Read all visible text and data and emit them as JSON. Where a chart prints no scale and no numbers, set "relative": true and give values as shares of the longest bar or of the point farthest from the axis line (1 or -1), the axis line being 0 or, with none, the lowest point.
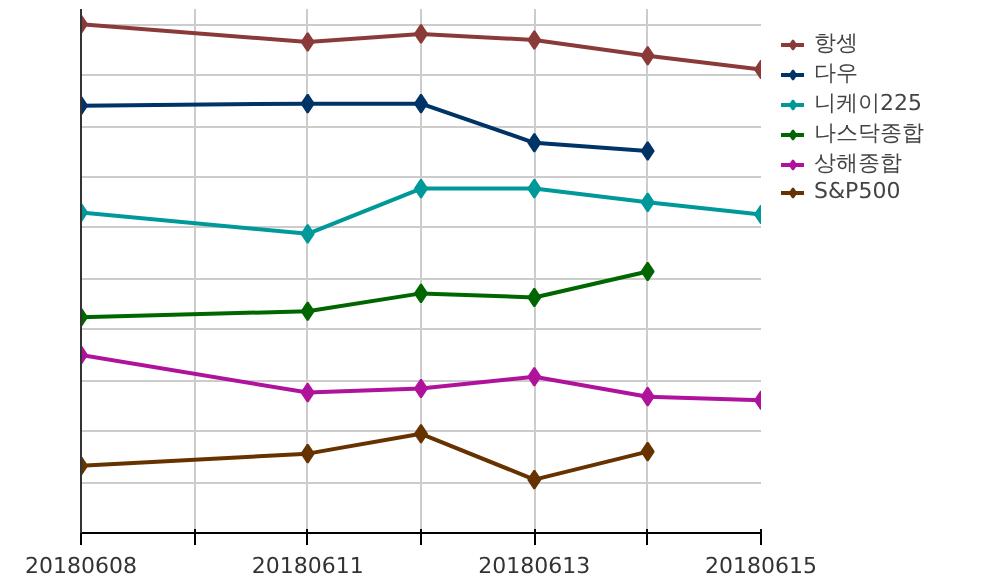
{
  "chart_data": {
    "type": "line",
    "relative": true,
    "categories": [
      "20180608",
      null,
      "20180611",
      null,
      "20180613",
      null,
      "20180615"
    ],
    "series": [
      {
        "name": "항셍",
        "color": "#8b3a3a",
        "values": [
          1.0,
          null,
          0.965,
          0.981,
          0.969,
          0.938,
          0.911
        ]
      },
      {
        "name": "다우",
        "color": "#003366",
        "values": [
          0.84,
          null,
          0.844,
          0.844,
          0.767,
          0.751,
          null
        ]
      },
      {
        "name": "니케이225",
        "color": "#009999",
        "values": [
          0.63,
          null,
          0.588,
          0.677,
          0.677,
          0.65,
          0.626
        ]
      },
      {
        "name": "나스닥종합",
        "color": "#006600",
        "values": [
          0.424,
          null,
          0.436,
          0.471,
          0.463,
          0.514,
          null
        ]
      },
      {
        "name": "상해종합",
        "color": "#b0139b",
        "values": [
          0.35,
          null,
          0.276,
          0.284,
          0.307,
          0.268,
          0.261
        ]
      },
      {
        "name": "S&P500",
        "color": "#663300",
        "values": [
          0.132,
          null,
          0.156,
          0.195,
          0.105,
          0.16,
          null
        ]
      }
    ],
    "grid": true,
    "legend": "right",
    "marker": "diamond",
    "line_style": "solid"
  }
}
